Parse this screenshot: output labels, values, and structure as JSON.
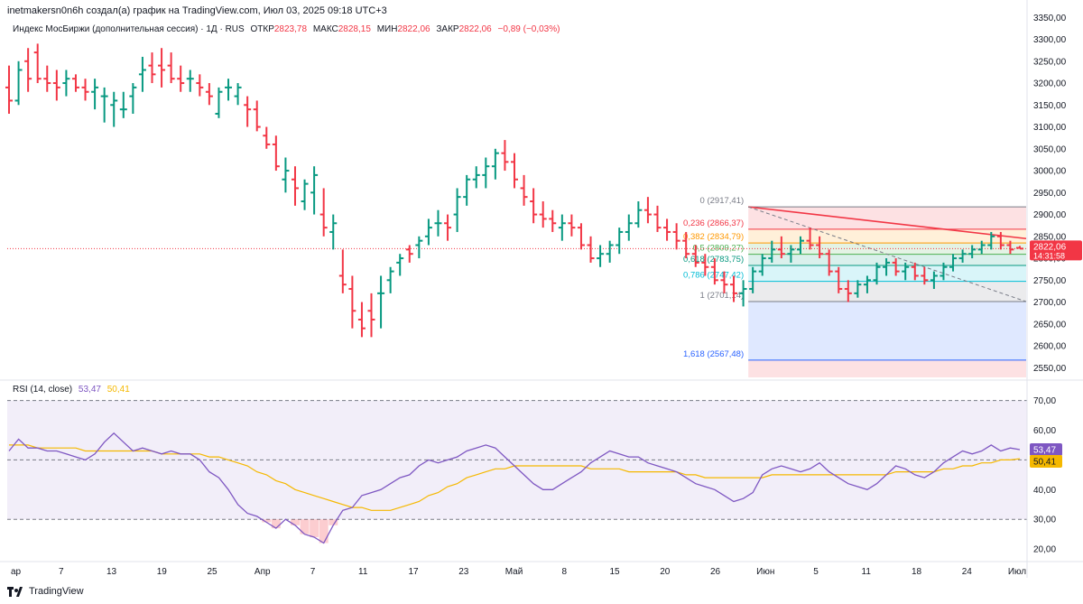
{
  "header": {
    "attribution": "inetmakersn0n6h создал(а) график на TradingView.com, Июл 03, 2025 09:18 UTC+3"
  },
  "symbol": {
    "title": "Индекс МосБиржи (дополнительная сессия) · 1Д · RUS",
    "open_label": "ОТКР",
    "open": "2823,78",
    "high_label": "МАКС",
    "high": "2828,15",
    "low_label": "МИН",
    "low": "2822,06",
    "close_label": "ЗАКР",
    "close": "2822,06",
    "change": "−0,89 (−0,03%)"
  },
  "price_badge": {
    "value": "2822,06",
    "countdown": "14:31:58",
    "color": "#f23645"
  },
  "rsi_legend": {
    "label": "RSI (14, close)",
    "rsi_value": "53,47",
    "ma_value": "50,41"
  },
  "footer": {
    "brand": "TradingView"
  },
  "colors": {
    "up": "#089981",
    "down": "#f23645",
    "rsi": "#7e57c2",
    "rsi_ma": "#f5b800"
  },
  "chart_data": [
    {
      "type": "ohlc",
      "price_axis": {
        "ticks": [
          2550,
          2600,
          2650,
          2700,
          2750,
          2800,
          2850,
          2900,
          2950,
          3000,
          3050,
          3100,
          3150,
          3200,
          3250,
          3300,
          3350
        ],
        "tick_labels": [
          "2550,00",
          "2600,00",
          "2650,00",
          "2700,00",
          "2750,00",
          "2800,00",
          "2850,00",
          "2900,00",
          "2950,00",
          "3000,00",
          "3050,00",
          "3100,00",
          "3150,00",
          "3200,00",
          "3250,00",
          "3300,00",
          "3350,00"
        ],
        "ylim": [
          2528,
          3365
        ]
      },
      "x_axis": {
        "labels": [
          "ар",
          "7",
          "13",
          "19",
          "25",
          "Апр",
          "7",
          "11",
          "17",
          "23",
          "Май",
          "8",
          "15",
          "20",
          "26",
          "Июн",
          "5",
          "11",
          "18",
          "24",
          "Июл"
        ]
      },
      "last_price": 2822.06,
      "fibonacci": {
        "levels": [
          {
            "ratio": "0",
            "label": "0 (2917,41)",
            "price": 2917.41
          },
          {
            "ratio": "0.236",
            "label": "0,236 (2866,37)",
            "price": 2866.37
          },
          {
            "ratio": "0.382",
            "label": "0,382 (2834,79)",
            "price": 2834.79
          },
          {
            "ratio": "0.5",
            "label": "0,5 (2809,27)",
            "price": 2809.27
          },
          {
            "ratio": "0.618",
            "label": "0,618 (2783,75)",
            "price": 2783.75
          },
          {
            "ratio": "0.786",
            "label": "0,786 (2747,42)",
            "price": 2747.42
          },
          {
            "ratio": "1",
            "label": "1 (2701,14)",
            "price": 2701.14
          },
          {
            "ratio": "1.618",
            "label": "1,618 (2567,48)",
            "price": 2567.48
          }
        ]
      },
      "bars": [
        [
          3190,
          3240,
          3130,
          3160
        ],
        [
          3160,
          3250,
          3150,
          3230
        ],
        [
          3250,
          3280,
          3180,
          3210
        ],
        [
          3270,
          3290,
          3200,
          3210
        ],
        [
          3210,
          3240,
          3180,
          3200
        ],
        [
          3200,
          3230,
          3160,
          3190
        ],
        [
          3200,
          3230,
          3170,
          3210
        ],
        [
          3210,
          3220,
          3180,
          3190
        ],
        [
          3190,
          3210,
          3160,
          3180
        ],
        [
          3180,
          3210,
          3140,
          3190
        ],
        [
          3170,
          3190,
          3110,
          3170
        ],
        [
          3150,
          3180,
          3100,
          3160
        ],
        [
          3140,
          3180,
          3120,
          3140
        ],
        [
          3170,
          3200,
          3130,
          3190
        ],
        [
          3220,
          3260,
          3180,
          3230
        ],
        [
          3240,
          3270,
          3200,
          3220
        ],
        [
          3240,
          3280,
          3190,
          3230
        ],
        [
          3240,
          3270,
          3200,
          3210
        ],
        [
          3210,
          3240,
          3180,
          3200
        ],
        [
          3210,
          3230,
          3180,
          3210
        ],
        [
          3200,
          3220,
          3170,
          3190
        ],
        [
          3180,
          3200,
          3150,
          3170
        ],
        [
          3130,
          3190,
          3120,
          3180
        ],
        [
          3190,
          3210,
          3160,
          3190
        ],
        [
          3170,
          3200,
          3150,
          3190
        ],
        [
          3150,
          3170,
          3100,
          3140
        ],
        [
          3140,
          3160,
          3090,
          3100
        ],
        [
          3080,
          3100,
          3050,
          3060
        ],
        [
          3060,
          3080,
          3000,
          3010
        ],
        [
          2980,
          3030,
          2950,
          3000
        ],
        [
          2980,
          3010,
          2920,
          2960
        ],
        [
          2930,
          2980,
          2910,
          2970
        ],
        [
          2950,
          3010,
          2900,
          2990
        ],
        [
          2900,
          2960,
          2850,
          2870
        ],
        [
          2860,
          2900,
          2820,
          2880
        ],
        [
          2760,
          2820,
          2720,
          2740
        ],
        [
          2730,
          2760,
          2640,
          2680
        ],
        [
          2660,
          2700,
          2620,
          2640
        ],
        [
          2680,
          2720,
          2620,
          2660
        ],
        [
          2720,
          2760,
          2640,
          2720
        ],
        [
          2750,
          2780,
          2720,
          2770
        ],
        [
          2790,
          2810,
          2760,
          2800
        ],
        [
          2820,
          2830,
          2790,
          2810
        ],
        [
          2830,
          2850,
          2800,
          2840
        ],
        [
          2850,
          2890,
          2830,
          2870
        ],
        [
          2880,
          2910,
          2850,
          2880
        ],
        [
          2880,
          2900,
          2840,
          2870
        ],
        [
          2900,
          2960,
          2860,
          2940
        ],
        [
          2940,
          2990,
          2920,
          2980
        ],
        [
          2980,
          3010,
          2960,
          2990
        ],
        [
          2990,
          3030,
          2960,
          3010
        ],
        [
          3010,
          3050,
          2980,
          3040
        ],
        [
          3040,
          3070,
          3000,
          3020
        ],
        [
          3020,
          3040,
          2960,
          2980
        ],
        [
          2960,
          2990,
          2920,
          2940
        ],
        [
          2930,
          2960,
          2880,
          2900
        ],
        [
          2900,
          2930,
          2870,
          2890
        ],
        [
          2890,
          2910,
          2860,
          2880
        ],
        [
          2870,
          2900,
          2840,
          2880
        ],
        [
          2880,
          2900,
          2850,
          2870
        ],
        [
          2870,
          2880,
          2820,
          2830
        ],
        [
          2830,
          2850,
          2790,
          2800
        ],
        [
          2800,
          2830,
          2780,
          2810
        ],
        [
          2810,
          2840,
          2790,
          2830
        ],
        [
          2830,
          2870,
          2810,
          2860
        ],
        [
          2860,
          2900,
          2840,
          2880
        ],
        [
          2880,
          2930,
          2870,
          2910
        ],
        [
          2910,
          2940,
          2880,
          2900
        ],
        [
          2900,
          2920,
          2860,
          2870
        ],
        [
          2870,
          2890,
          2840,
          2860
        ],
        [
          2860,
          2880,
          2820,
          2840
        ],
        [
          2840,
          2860,
          2800,
          2810
        ],
        [
          2810,
          2830,
          2780,
          2790
        ],
        [
          2790,
          2810,
          2760,
          2780
        ],
        [
          2780,
          2800,
          2740,
          2750
        ],
        [
          2750,
          2770,
          2720,
          2740
        ],
        [
          2740,
          2760,
          2700,
          2720
        ],
        [
          2720,
          2750,
          2690,
          2730
        ],
        [
          2730,
          2780,
          2720,
          2770
        ],
        [
          2770,
          2810,
          2760,
          2800
        ],
        [
          2800,
          2840,
          2790,
          2820
        ],
        [
          2820,
          2850,
          2800,
          2810
        ],
        [
          2810,
          2830,
          2790,
          2820
        ],
        [
          2820,
          2850,
          2810,
          2840
        ],
        [
          2840,
          2870,
          2820,
          2830
        ],
        [
          2830,
          2850,
          2800,
          2810
        ],
        [
          2810,
          2820,
          2760,
          2770
        ],
        [
          2770,
          2780,
          2720,
          2730
        ],
        [
          2730,
          2750,
          2700,
          2720
        ],
        [
          2720,
          2750,
          2710,
          2740
        ],
        [
          2740,
          2760,
          2720,
          2750
        ],
        [
          2750,
          2790,
          2740,
          2780
        ],
        [
          2780,
          2800,
          2760,
          2790
        ],
        [
          2790,
          2800,
          2760,
          2770
        ],
        [
          2770,
          2790,
          2750,
          2780
        ],
        [
          2780,
          2790,
          2750,
          2760
        ],
        [
          2760,
          2780,
          2740,
          2750
        ],
        [
          2750,
          2770,
          2730,
          2760
        ],
        [
          2760,
          2790,
          2750,
          2780
        ],
        [
          2780,
          2810,
          2770,
          2800
        ],
        [
          2800,
          2820,
          2790,
          2810
        ],
        [
          2810,
          2830,
          2800,
          2820
        ],
        [
          2820,
          2840,
          2810,
          2830
        ],
        [
          2830,
          2860,
          2820,
          2850
        ],
        [
          2850,
          2860,
          2820,
          2830
        ],
        [
          2830,
          2840,
          2810,
          2820
        ],
        [
          2823.78,
          2828.15,
          2822.06,
          2822.06
        ]
      ]
    },
    {
      "type": "line",
      "name": "RSI (14, close)",
      "y_axis": {
        "ticks": [
          20,
          30,
          40,
          50,
          60,
          70
        ],
        "tick_labels": [
          "20,00",
          "30,00",
          "40,00",
          "50,00",
          "60,00",
          "70,00"
        ],
        "ylim": [
          17,
          72
        ]
      },
      "bands": {
        "upper": 70,
        "middle": 50,
        "lower": 30
      },
      "rsi": [
        53,
        57,
        54,
        54,
        53,
        53,
        52,
        51,
        50,
        52,
        56,
        59,
        56,
        53,
        54,
        53,
        52,
        53,
        52,
        52,
        50,
        46,
        44,
        40,
        35,
        32,
        31,
        29,
        27,
        30,
        28,
        25,
        24,
        22,
        28,
        33,
        34,
        38,
        39,
        40,
        42,
        44,
        45,
        48,
        50,
        49,
        50,
        51,
        53,
        54,
        55,
        54,
        51,
        48,
        45,
        42,
        40,
        40,
        42,
        44,
        46,
        49,
        51,
        53,
        52,
        51,
        51,
        49,
        48,
        47,
        46,
        44,
        42,
        41,
        40,
        38,
        36,
        37,
        39,
        45,
        47,
        48,
        47,
        46,
        47,
        49,
        46,
        44,
        42,
        41,
        40,
        42,
        45,
        48,
        47,
        45,
        44,
        46,
        49,
        51,
        53,
        52,
        53,
        55,
        53,
        54,
        53.47
      ],
      "rsi_ma": [
        55,
        55,
        55,
        54,
        54,
        54,
        54,
        54,
        53,
        53,
        53,
        53,
        53,
        53,
        53,
        53,
        52,
        52,
        52,
        52,
        52,
        51,
        51,
        50,
        49,
        48,
        46,
        45,
        43,
        42,
        40,
        39,
        38,
        37,
        36,
        35,
        34,
        34,
        33,
        33,
        33,
        34,
        35,
        36,
        38,
        39,
        41,
        42,
        44,
        45,
        46,
        47,
        47,
        48,
        48,
        48,
        48,
        48,
        48,
        48,
        48,
        47,
        47,
        47,
        47,
        46,
        46,
        46,
        46,
        46,
        46,
        45,
        45,
        44,
        44,
        44,
        44,
        44,
        44,
        44,
        45,
        45,
        45,
        45,
        45,
        45,
        45,
        45,
        45,
        45,
        45,
        45,
        45,
        46,
        46,
        46,
        46,
        46,
        47,
        47,
        48,
        48,
        49,
        49,
        50,
        50,
        50.41
      ]
    }
  ]
}
